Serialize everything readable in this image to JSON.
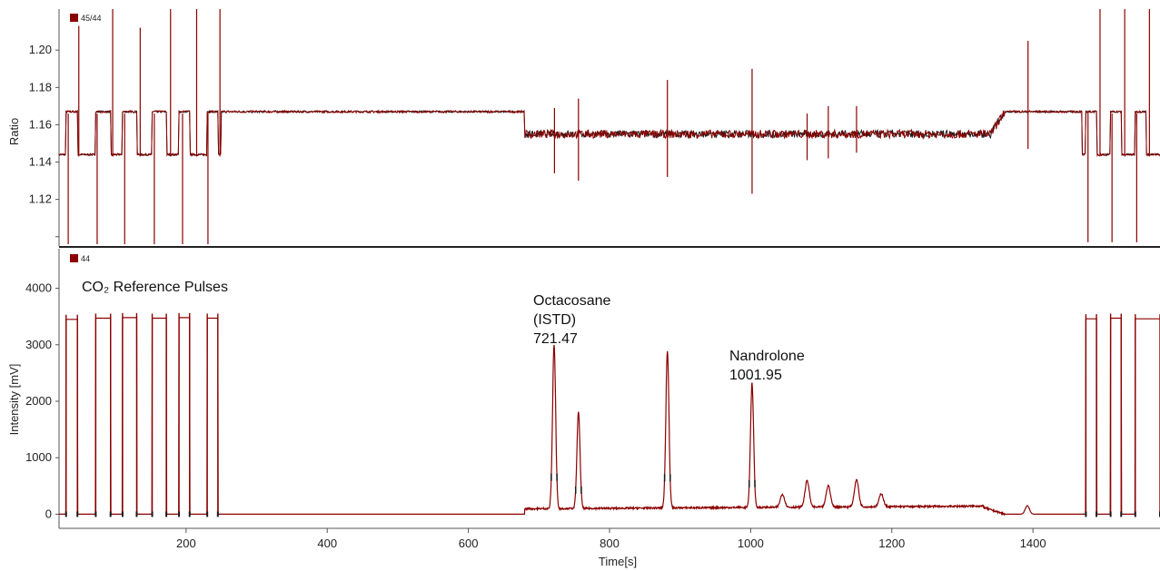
{
  "chart_data": [
    {
      "type": "line",
      "panel": "top",
      "ylabel": "Ratio",
      "ylim": [
        1.095,
        1.222
      ],
      "xlim": [
        20,
        1580
      ],
      "yticks": [
        "1.12",
        "1.14",
        "1.16",
        "1.18",
        "1.20"
      ],
      "legend": "45/44",
      "legend_position": "top-left",
      "colors": {
        "primary": "#8B0000",
        "secondary": "#1a1a1a"
      },
      "series": [
        {
          "name": "45/44",
          "baseline_levels": {
            "reference_pulses_high": 1.167,
            "reference_pulses_low": 1.144,
            "plateau_250_680": 1.167,
            "sample_region_680_1350": 1.155,
            "after_1360": 1.167
          },
          "pulse_windows": [
            [
              30,
              46
            ],
            [
              72,
              93
            ],
            [
              110,
              130
            ],
            [
              152,
              172
            ],
            [
              190,
              205
            ],
            [
              230,
              245
            ],
            [
              1475,
              1490
            ],
            [
              1510,
              1525
            ],
            [
              1545,
              1560
            ]
          ],
          "spikes": [
            {
              "x": 33,
              "min": 1.096,
              "max": 1.166
            },
            {
              "x": 48,
              "min": 1.143,
              "max": 1.213
            },
            {
              "x": 74,
              "min": 1.096,
              "max": 1.166
            },
            {
              "x": 96,
              "min": 1.143,
              "max": 1.222
            },
            {
              "x": 113,
              "min": 1.096,
              "max": 1.166
            },
            {
              "x": 135,
              "min": 1.143,
              "max": 1.212
            },
            {
              "x": 155,
              "min": 1.096,
              "max": 1.166
            },
            {
              "x": 178,
              "min": 1.143,
              "max": 1.222
            },
            {
              "x": 195,
              "min": 1.096,
              "max": 1.166
            },
            {
              "x": 215,
              "min": 1.143,
              "max": 1.222
            },
            {
              "x": 231,
              "min": 1.096,
              "max": 1.166
            },
            {
              "x": 248,
              "min": 1.143,
              "max": 1.222
            },
            {
              "x": 722,
              "min": 1.134,
              "max": 1.169
            },
            {
              "x": 756,
              "min": 1.13,
              "max": 1.174
            },
            {
              "x": 882,
              "min": 1.132,
              "max": 1.184
            },
            {
              "x": 1002,
              "min": 1.123,
              "max": 1.19
            },
            {
              "x": 1080,
              "min": 1.141,
              "max": 1.166
            },
            {
              "x": 1110,
              "min": 1.142,
              "max": 1.17
            },
            {
              "x": 1150,
              "min": 1.145,
              "max": 1.17
            },
            {
              "x": 1393,
              "min": 1.147,
              "max": 1.205
            },
            {
              "x": 1478,
              "min": 1.097,
              "max": 1.167
            },
            {
              "x": 1495,
              "min": 1.143,
              "max": 1.222
            },
            {
              "x": 1512,
              "min": 1.097,
              "max": 1.166
            },
            {
              "x": 1530,
              "min": 1.143,
              "max": 1.222
            },
            {
              "x": 1547,
              "min": 1.097,
              "max": 1.166
            },
            {
              "x": 1565,
              "min": 1.143,
              "max": 1.222
            }
          ]
        }
      ]
    },
    {
      "type": "line",
      "panel": "bottom",
      "xlabel": "Time[s]",
      "ylabel": "Intensity [mV]",
      "xlim": [
        20,
        1580
      ],
      "ylim": [
        -250,
        4700
      ],
      "xticks": [
        "200",
        "400",
        "600",
        "800",
        "1000",
        "1200",
        "1400"
      ],
      "yticks": [
        "0",
        "1000",
        "2000",
        "3000",
        "4000"
      ],
      "legend": "44",
      "legend_position": "top-left",
      "colors": {
        "primary": "#8B0000",
        "secondary": "#1a1a1a"
      },
      "series": [
        {
          "name": "44",
          "reference_pulses": [
            {
              "start": 30,
              "end": 46,
              "height": 3450
            },
            {
              "start": 72,
              "end": 93,
              "height": 3470
            },
            {
              "start": 110,
              "end": 130,
              "height": 3480
            },
            {
              "start": 152,
              "end": 172,
              "height": 3470
            },
            {
              "start": 190,
              "end": 205,
              "height": 3480
            },
            {
              "start": 230,
              "end": 245,
              "height": 3470
            },
            {
              "start": 1475,
              "end": 1490,
              "height": 3460
            },
            {
              "start": 1510,
              "end": 1525,
              "height": 3470
            },
            {
              "start": 1545,
              "end": 1580,
              "height": 3460
            }
          ],
          "baseline": {
            "before_680": 0,
            "sample_region_680_1360": 120,
            "after_1360": 0
          },
          "peaks": [
            {
              "x": 721.47,
              "height": 2900
            },
            {
              "x": 756,
              "height": 1700
            },
            {
              "x": 882,
              "height": 2780
            },
            {
              "x": 1001.95,
              "height": 2200
            },
            {
              "x": 1045,
              "height": 230
            },
            {
              "x": 1080,
              "height": 470
            },
            {
              "x": 1110,
              "height": 380
            },
            {
              "x": 1150,
              "height": 480
            },
            {
              "x": 1185,
              "height": 230
            },
            {
              "x": 1392,
              "height": 150
            }
          ]
        }
      ],
      "annotations": [
        {
          "text": "CO₂ Reference Pulses"
        },
        {
          "lines": [
            "Octacosane",
            "(ISTD)",
            "721.47"
          ]
        },
        {
          "lines": [
            "Nandrolone",
            "1001.95"
          ]
        }
      ]
    }
  ]
}
